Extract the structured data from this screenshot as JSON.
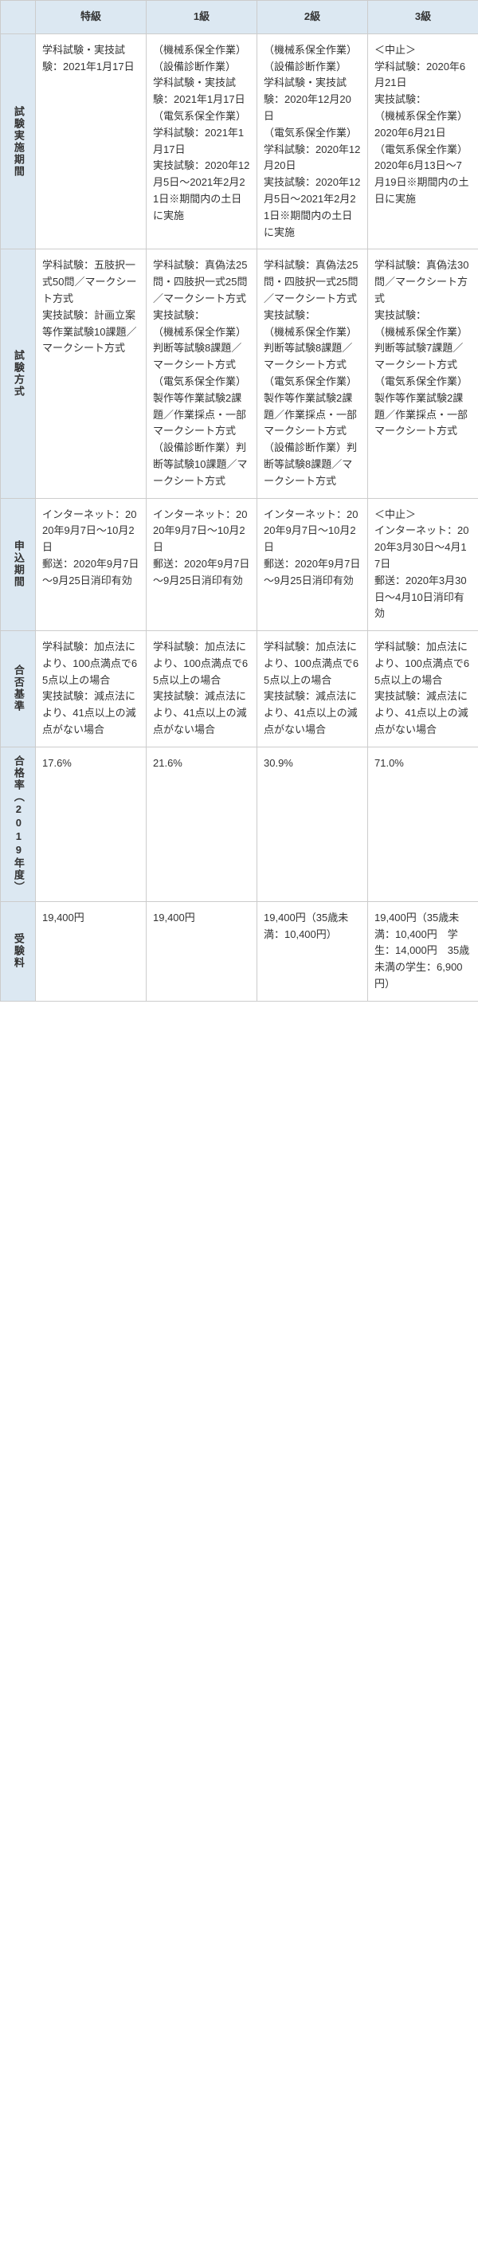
{
  "headers": [
    "特級",
    "1級",
    "2級",
    "3級"
  ],
  "rows": [
    {
      "label": "試験実施期間",
      "cells": [
        "学科試験・実技試験：2021年1月17日",
        "（機械系保全作業）\n（設備診断作業）\n学科試験・実技試験：2021年1月17日\n（電気系保全作業）\n学科試験：2021年1月17日\n実技試験：2020年12月5日～2021年2月21日※期間内の土日に実施",
        "（機械系保全作業）\n（設備診断作業）\n学科試験・実技試験：2020年12月20日\n（電気系保全作業）\n学科試験：2020年12月20日\n実技試験：2020年12月5日～2021年2月21日※期間内の土日に実施",
        "＜中止＞\n学科試験：2020年6月21日\n実技試験：\n（機械系保全作業）\n2020年6月21日\n（電気系保全作業）\n2020年6月13日～7月19日※期間内の土日に実施"
      ]
    },
    {
      "label": "試験方式",
      "cells": [
        "学科試験：五肢択一式50問／マークシート方式\n実技試験：計画立案等作業試験10課題／マークシート方式",
        "学科試験：真偽法25問・四肢択一式25問／マークシート方式\n実技試験：\n（機械系保全作業）判断等試験8課題／マークシート方式\n（電気系保全作業）製作等作業試験2課題／作業採点・一部マークシート方式\n（設備診断作業）判断等試験10課題／マークシート方式",
        "学科試験：真偽法25問・四肢択一式25問／マークシート方式\n実技試験：\n（機械系保全作業）判断等試験8課題／マークシート方式\n（電気系保全作業）製作等作業試験2課題／作業採点・一部マークシート方式\n（設備診断作業）判断等試験8課題／マークシート方式",
        "学科試験：真偽法30問／マークシート方式\n実技試験：\n（機械系保全作業）判断等試験7課題／マークシート方式\n（電気系保全作業）製作等作業試験2課題／作業採点・一部マークシート方式"
      ]
    },
    {
      "label": "申込期間",
      "cells": [
        "インターネット：2020年9月7日～10月2日\n郵送：2020年9月7日～9月25日消印有効",
        "インターネット：2020年9月7日～10月2日\n郵送：2020年9月7日～9月25日消印有効",
        "インターネット：2020年9月7日～10月2日\n郵送：2020年9月7日～9月25日消印有効",
        "＜中止＞\nインターネット：2020年3月30日～4月17日\n郵送：2020年3月30日～4月10日消印有効"
      ]
    },
    {
      "label": "合否基準",
      "cells": [
        "学科試験：加点法により、100点満点で65点以上の場合\n実技試験：減点法により、41点以上の減点がない場合",
        "学科試験：加点法により、100点満点で65点以上の場合\n実技試験：減点法により、41点以上の減点がない場合",
        "学科試験：加点法により、100点満点で65点以上の場合\n実技試験：減点法により、41点以上の減点がない場合",
        "学科試験：加点法により、100点満点で65点以上の場合\n実技試験：減点法により、41点以上の減点がない場合"
      ]
    },
    {
      "label": "合格率（2019年度）",
      "cells": [
        "17.6%",
        "21.6%",
        "30.9%",
        "71.0%"
      ]
    },
    {
      "label": "受験料",
      "cells": [
        "19,400円",
        "19,400円",
        "19,400円（35歳未満：10,400円）",
        "19,400円（35歳未満：10,400円　学生：14,000円　35歳未満の学生：6,900円）"
      ]
    }
  ]
}
